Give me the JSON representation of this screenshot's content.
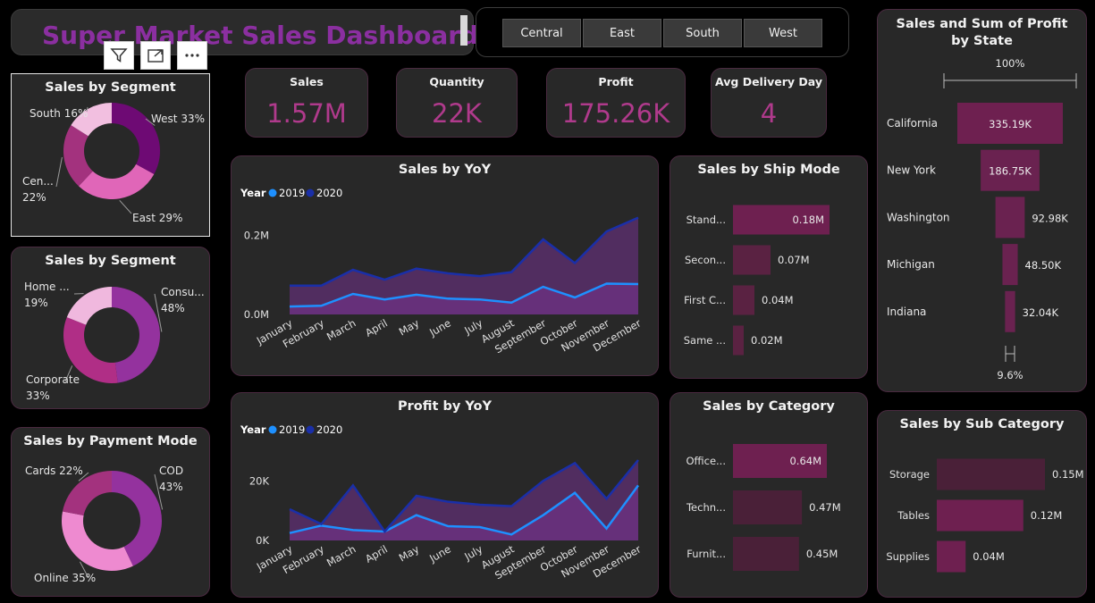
{
  "header": {
    "title": "Super Market Sales Dashboard"
  },
  "toolbar": {
    "filter_icon": "filter-icon",
    "focus_icon": "focus-mode-icon",
    "more_icon": "more-options-icon"
  },
  "region_slicer": {
    "options": [
      "Central",
      "East",
      "South",
      "West"
    ]
  },
  "kpis": [
    {
      "label": "Sales",
      "value": "1.57M"
    },
    {
      "label": "Quantity",
      "value": "22K"
    },
    {
      "label": "Profit",
      "value": "175.26K"
    },
    {
      "label": "Avg Delivery Day",
      "value": "4"
    }
  ],
  "colors": {
    "accent": "#b03a8c",
    "series_2019": "#1e90ff",
    "series_2020": "#1a2fa8",
    "bar": "#6e2050",
    "bar_dark": "#4a2038"
  },
  "chart_data": [
    {
      "id": "region_donut",
      "type": "pie",
      "title": "Sales by Segment",
      "slices": [
        {
          "name": "West",
          "label": "West 33%",
          "value": 33,
          "color": "#6e0a74"
        },
        {
          "name": "East",
          "label": "East 29%",
          "value": 29,
          "color": "#e066b8"
        },
        {
          "name": "Central",
          "label": "Cen... 22%",
          "value": 22,
          "color": "#a3327e"
        },
        {
          "name": "South",
          "label": "South 16%",
          "value": 16,
          "color": "#f2bfe0"
        }
      ]
    },
    {
      "id": "segment_donut",
      "type": "pie",
      "title": "Sales by Segment",
      "slices": [
        {
          "name": "Consumer",
          "label": "Consu... 48%",
          "value": 48,
          "color": "#94329e"
        },
        {
          "name": "Corporate",
          "label": "Corporate 33%",
          "value": 33,
          "color": "#b02e86"
        },
        {
          "name": "Home Office",
          "label": "Home ... 19%",
          "value": 19,
          "color": "#f0b8de"
        }
      ]
    },
    {
      "id": "payment_donut",
      "type": "pie",
      "title": "Sales by Payment Mode",
      "slices": [
        {
          "name": "COD",
          "label": "COD 43%",
          "value": 43,
          "color": "#94329e"
        },
        {
          "name": "Online",
          "label": "Online 35%",
          "value": 35,
          "color": "#ee8ad0"
        },
        {
          "name": "Cards",
          "label": "Cards 22%",
          "value": 22,
          "color": "#a3327e"
        }
      ]
    },
    {
      "id": "sales_yoy",
      "type": "area",
      "title": "Sales by YoY",
      "legend_title": "Year",
      "categories": [
        "January",
        "February",
        "March",
        "April",
        "May",
        "June",
        "July",
        "August",
        "September",
        "October",
        "November",
        "December"
      ],
      "series": [
        {
          "name": "2019",
          "values": [
            0.02,
            0.022,
            0.052,
            0.038,
            0.05,
            0.04,
            0.038,
            0.03,
            0.07,
            0.043,
            0.078,
            0.077
          ]
        },
        {
          "name": "2020",
          "values": [
            0.073,
            0.073,
            0.113,
            0.088,
            0.116,
            0.104,
            0.097,
            0.107,
            0.19,
            0.13,
            0.21,
            0.245
          ]
        }
      ],
      "yticks": [
        {
          "v": 0,
          "label": "0.0M"
        },
        {
          "v": 0.2,
          "label": "0.2M"
        }
      ],
      "ylim": [
        0,
        0.26
      ]
    },
    {
      "id": "profit_yoy",
      "type": "area",
      "title": "Profit by YoY",
      "legend_title": "Year",
      "categories": [
        "January",
        "February",
        "March",
        "April",
        "May",
        "June",
        "July",
        "August",
        "September",
        "October",
        "November",
        "December"
      ],
      "series": [
        {
          "name": "2019",
          "values": [
            2500,
            5000,
            3500,
            3000,
            8500,
            4800,
            4500,
            2000,
            8500,
            16000,
            4000,
            18500
          ]
        },
        {
          "name": "2020",
          "values": [
            10500,
            5500,
            18500,
            3000,
            15000,
            13000,
            12000,
            11500,
            20000,
            26000,
            14000,
            27000
          ]
        }
      ],
      "yticks": [
        {
          "v": 0,
          "label": "0K"
        },
        {
          "v": 20000,
          "label": "20K"
        }
      ],
      "ylim": [
        0,
        30000
      ]
    },
    {
      "id": "ship_mode",
      "type": "bar",
      "title": "Sales by Ship Mode",
      "categories": [
        "Stand...",
        "Secon...",
        "First C...",
        "Same ..."
      ],
      "values": [
        0.18,
        0.07,
        0.04,
        0.02
      ],
      "value_labels": [
        "0.18M",
        "0.07M",
        "0.04M",
        "0.02M"
      ],
      "max": 0.18
    },
    {
      "id": "category",
      "type": "bar",
      "title": "Sales by Category",
      "categories": [
        "Office...",
        "Techn...",
        "Furnit..."
      ],
      "values": [
        0.64,
        0.47,
        0.45
      ],
      "value_labels": [
        "0.64M",
        "0.47M",
        "0.45M"
      ],
      "max": 0.64
    },
    {
      "id": "sub_category",
      "type": "bar",
      "title": "Sales by Sub Category",
      "categories": [
        "Storage",
        "Tables",
        "Supplies"
      ],
      "values": [
        0.15,
        0.12,
        0.04
      ],
      "value_labels": [
        "0.15M",
        "0.12M",
        "0.04M"
      ],
      "max": 0.15
    },
    {
      "id": "state_funnel",
      "type": "bar",
      "title": "Sales and Sum of Profit by State",
      "categories": [
        "California",
        "New York",
        "Washington",
        "Michigan",
        "Indiana"
      ],
      "values": [
        335.19,
        186.75,
        92.98,
        48.5,
        32.04
      ],
      "value_labels": [
        "335.19K",
        "186.75K",
        "92.98K",
        "48.50K",
        "32.04K"
      ],
      "top_label": "100%",
      "bottom_label": "9.6%",
      "max": 335.19
    }
  ]
}
